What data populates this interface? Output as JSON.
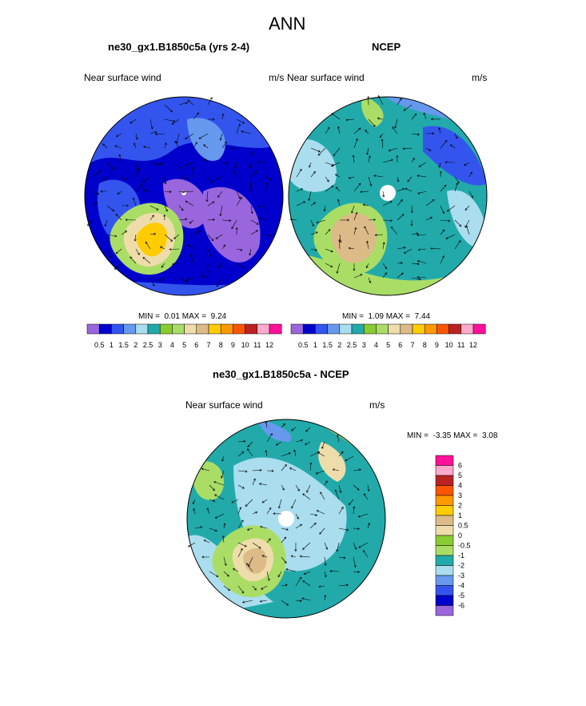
{
  "page_title": "ANN",
  "panels": [
    {
      "title": "ne30_gx1.B1850c5a (yrs 2-4)",
      "variable": "Near surface wind",
      "units": "m/s",
      "min_label": "MIN =",
      "min_value": "0.01",
      "max_label": "MAX =",
      "max_value": "9.24"
    },
    {
      "title": "NCEP",
      "variable": "Near surface wind",
      "units": "m/s",
      "min_label": "MIN =",
      "min_value": "1.09",
      "max_label": "MAX =",
      "max_value": "7.44"
    },
    {
      "title": "ne30_gx1.B1850c5a - NCEP",
      "variable": "Near surface wind",
      "units": "m/s",
      "min_label": "MIN =",
      "min_value": "-3.35",
      "max_label": "MAX =",
      "max_value": "3.08"
    }
  ],
  "chart_data": [
    {
      "type": "heatmap",
      "projection": "north polar stereographic",
      "title": "ne30_gx1.B1850c5a (yrs 2-4)",
      "quantity": "Near surface wind",
      "units": "m/s",
      "min": 0.01,
      "max": 9.24,
      "colorbar_levels": [
        "0.5",
        "1",
        "1.5",
        "2",
        "2.5",
        "3",
        "4",
        "5",
        "6",
        "7",
        "8",
        "9",
        "10",
        "11",
        "12"
      ],
      "colorbar_colors": [
        "#9966dd",
        "#0000cc",
        "#3355ee",
        "#6699ee",
        "#aaddee",
        "#22aaaa",
        "#88cc33",
        "#aadd66",
        "#eeddaa",
        "#ddbb88",
        "#ffcc00",
        "#ff9900",
        "#ff5500",
        "#bb2222",
        "#ffaacc",
        "#ff1199"
      ]
    },
    {
      "type": "heatmap",
      "projection": "north polar stereographic",
      "title": "NCEP",
      "quantity": "Near surface wind",
      "units": "m/s",
      "min": 1.09,
      "max": 7.44,
      "colorbar_levels": [
        "0.5",
        "1",
        "1.5",
        "2",
        "2.5",
        "3",
        "4",
        "5",
        "6",
        "7",
        "8",
        "9",
        "10",
        "11",
        "12"
      ],
      "colorbar_colors": [
        "#9966dd",
        "#0000cc",
        "#3355ee",
        "#6699ee",
        "#aaddee",
        "#22aaaa",
        "#88cc33",
        "#aadd66",
        "#eeddaa",
        "#ddbb88",
        "#ffcc00",
        "#ff9900",
        "#ff5500",
        "#bb2222",
        "#ffaacc",
        "#ff1199"
      ]
    },
    {
      "type": "heatmap",
      "projection": "north polar stereographic",
      "title": "ne30_gx1.B1850c5a - NCEP",
      "quantity": "Near surface wind",
      "units": "m/s",
      "min": -3.35,
      "max": 3.08,
      "colorbar_levels": [
        "6",
        "5",
        "4",
        "3",
        "2",
        "1",
        "0.5",
        "0",
        "-0.5",
        "-1",
        "-2",
        "-3",
        "-4",
        "-5",
        "-6"
      ],
      "colorbar_colors": [
        "#ff1199",
        "#ffaacc",
        "#bb2222",
        "#ff5500",
        "#ff9900",
        "#ffcc00",
        "#ddbb88",
        "#eeddaa",
        "#88cc33",
        "#aadd66",
        "#22aaaa",
        "#aaddee",
        "#6699ee",
        "#3355ee",
        "#0000cc",
        "#9966dd"
      ]
    }
  ]
}
